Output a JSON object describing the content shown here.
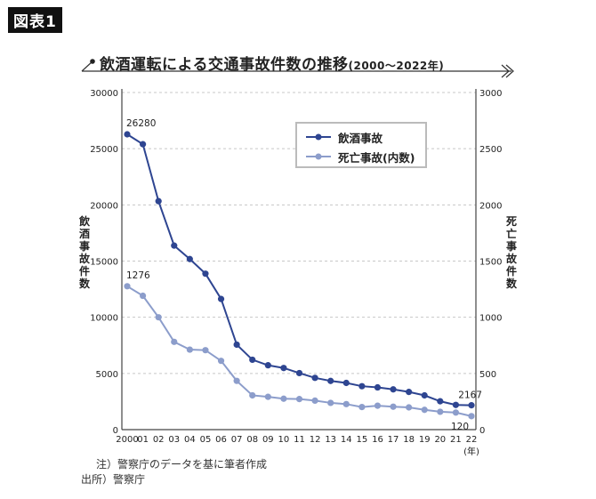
{
  "figure_label": "図表1",
  "title": "飲酒運転による交通事故件数の推移",
  "title_suffix": "(2000〜2022年)",
  "colors": {
    "drunk_accidents": "#2e4591",
    "fatal_accidents": "#8c9dcb",
    "grid": "#c8c8c8"
  },
  "notes": {
    "note": "注）警察庁のデータを基に筆者作成",
    "source": "出所）警察庁"
  },
  "chart_data": {
    "type": "line",
    "title": "飲酒運転による交通事故件数の推移(2000〜2022年)",
    "categories": [
      "2000",
      "01",
      "02",
      "03",
      "04",
      "05",
      "06",
      "07",
      "08",
      "09",
      "10",
      "11",
      "12",
      "13",
      "14",
      "15",
      "16",
      "17",
      "18",
      "19",
      "20",
      "21",
      "22"
    ],
    "x_unit": "(年)",
    "y_left": {
      "label": "飲酒事故件数",
      "range": [
        0,
        30000
      ],
      "ticks": [
        "0",
        "5000",
        "10000",
        "15000",
        "20000",
        "25000",
        "30000"
      ]
    },
    "y_right": {
      "label": "死亡事故件数",
      "range": [
        0,
        3000
      ],
      "ticks": [
        "0",
        "500",
        "1000",
        "1500",
        "2000",
        "2500",
        "3000"
      ]
    },
    "grid": true,
    "legend_placement": "top-right",
    "series": [
      {
        "name": "飲酒事故",
        "axis": "left",
        "values": [
          26280,
          25400,
          20331,
          16374,
          15179,
          13878,
          11627,
          7562,
          6219,
          5726,
          5484,
          5030,
          4605,
          4335,
          4155,
          3864,
          3757,
          3582,
          3355,
          3047,
          2522,
          2198,
          2167
        ]
      },
      {
        "name": "死亡事故(内数)",
        "axis": "right",
        "values": [
          1276,
          1191,
          1000,
          781,
          712,
          707,
          612,
          434,
          305,
          292,
          275,
          272,
          258,
          238,
          227,
          201,
          213,
          204,
          198,
          176,
          159,
          152,
          120
        ]
      }
    ],
    "annotations": [
      {
        "series": 0,
        "index": 0,
        "text": "26280"
      },
      {
        "series": 1,
        "index": 0,
        "text": "1276"
      },
      {
        "series": 0,
        "index": 22,
        "text": "2167"
      },
      {
        "series": 1,
        "index": 22,
        "text": "120"
      }
    ]
  }
}
